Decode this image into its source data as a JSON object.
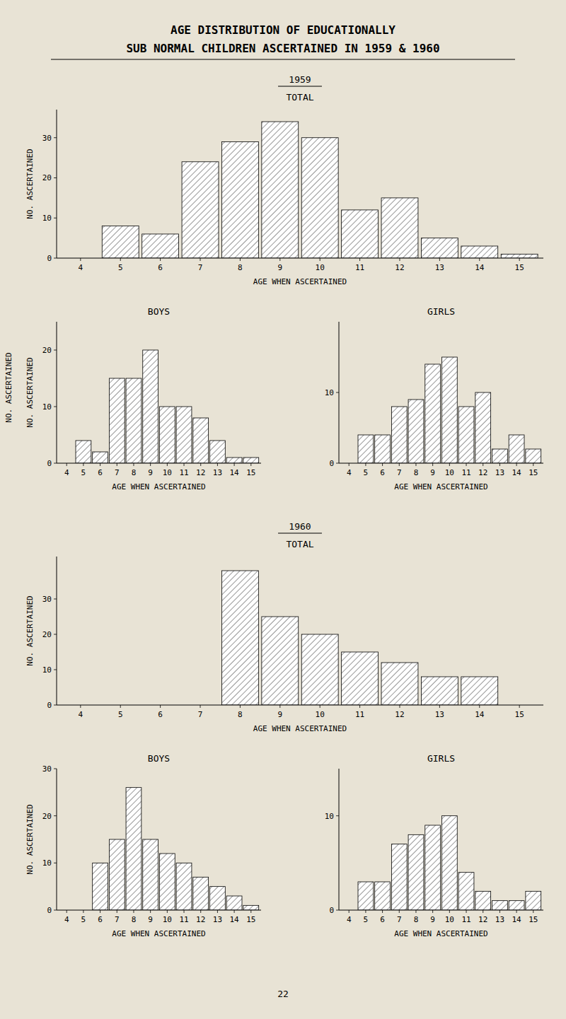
{
  "title": "AGE DISTRIBUTION OF EDUCATIONALLY",
  "subtitle": "SUB NORMAL CHILDREN ASCERTAINED IN 1959 & 1960",
  "annotations": [
    "NO. ASCERTAINED",
    "22"
  ],
  "chart_data": [
    {
      "type": "bar",
      "title": "1959",
      "subtitle": "TOTAL",
      "categories": [
        "4",
        "5",
        "6",
        "7",
        "8",
        "9",
        "10",
        "11",
        "12",
        "13",
        "14",
        "15"
      ],
      "values": [
        0,
        8,
        6,
        24,
        29,
        34,
        30,
        12,
        15,
        5,
        3,
        1
      ],
      "color": "white",
      "ylim": [
        0,
        37
      ],
      "yticks": [
        0,
        10,
        20,
        30
      ],
      "grid": false,
      "xlabel": "AGE WHEN ASCERTAINED",
      "ylabel": "NO. ASCERTAINED"
    },
    {
      "type": "bar",
      "title": "BOYS",
      "categories": [
        "4",
        "5",
        "6",
        "7",
        "8",
        "9",
        "10",
        "11",
        "12",
        "13",
        "14",
        "15"
      ],
      "values": [
        0,
        4,
        2,
        15,
        15,
        20,
        10,
        10,
        8,
        4,
        1,
        1
      ],
      "color": "white",
      "ylim": [
        0,
        25
      ],
      "yticks": [
        0,
        10,
        20
      ],
      "grid": false,
      "xlabel": "AGE WHEN ASCERTAINED",
      "ylabel": "NO. ASCERTAINED"
    },
    {
      "type": "bar",
      "title": "GIRLS",
      "categories": [
        "4",
        "5",
        "6",
        "7",
        "8",
        "9",
        "10",
        "11",
        "12",
        "13",
        "14",
        "15"
      ],
      "values": [
        0,
        4,
        4,
        8,
        9,
        14,
        15,
        8,
        10,
        2,
        4,
        2
      ],
      "color": "white",
      "ylim": [
        0,
        20
      ],
      "yticks": [
        0,
        10
      ],
      "grid": false,
      "xlabel": "AGE WHEN ASCERTAINED"
    },
    {
      "type": "bar",
      "title": "1960",
      "subtitle": "TOTAL",
      "categories": [
        "4",
        "5",
        "6",
        "7",
        "8",
        "9",
        "10",
        "11",
        "12",
        "13",
        "14",
        "15"
      ],
      "values": [
        0,
        0,
        0,
        0,
        38,
        25,
        20,
        15,
        12,
        8,
        8,
        0
      ],
      "color": "white",
      "ylim": [
        0,
        42
      ],
      "yticks": [
        0,
        10,
        20,
        30
      ],
      "grid": false,
      "xlabel": "AGE WHEN ASCERTAINED",
      "ylabel": "NO. ASCERTAINED"
    },
    {
      "type": "bar",
      "title": "BOYS",
      "categories": [
        "4",
        "5",
        "6",
        "7",
        "8",
        "9",
        "10",
        "11",
        "12",
        "13",
        "14",
        "15"
      ],
      "values": [
        0,
        0,
        10,
        15,
        26,
        15,
        12,
        10,
        7,
        5,
        3,
        1
      ],
      "color": "white",
      "ylim": [
        0,
        30
      ],
      "yticks": [
        0,
        10,
        20,
        30
      ],
      "grid": false,
      "xlabel": "AGE WHEN ASCERTAINED",
      "ylabel": "NO. ASCERTAINED"
    },
    {
      "type": "bar",
      "title": "GIRLS",
      "categories": [
        "4",
        "5",
        "6",
        "7",
        "8",
        "9",
        "10",
        "11",
        "12",
        "13",
        "14",
        "15"
      ],
      "values": [
        0,
        3,
        3,
        7,
        8,
        9,
        10,
        4,
        2,
        1,
        1,
        2
      ],
      "color": "white",
      "ylim": [
        0,
        15
      ],
      "yticks": [
        0,
        10
      ],
      "grid": false,
      "xlabel": "AGE WHEN ASCERTAINED"
    }
  ]
}
